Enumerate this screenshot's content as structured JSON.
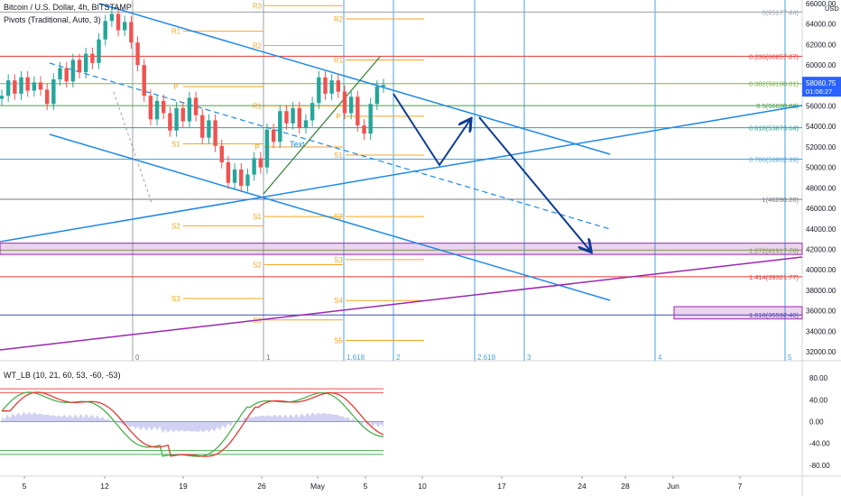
{
  "header": {
    "symbol": "Bitcoin / U.S. Dollar, 4h, BITSTAMP",
    "indicator": "Pivots (Traditional, Auto, 3)",
    "currency": "USD"
  },
  "oscillator": {
    "label": "WT_LB (10, 21, 60, 53, -60, -53)",
    "ticks": [
      80,
      40,
      0,
      -40,
      -80
    ],
    "tick_labels": [
      "80.00",
      "40.00",
      "0.00",
      "-40.00",
      "-80.00"
    ]
  },
  "price_label": {
    "value": "58060.75",
    "timer": "01:06:27",
    "color": "#2962ff"
  },
  "colors": {
    "up": "#26a69a",
    "down": "#ef5350",
    "trend": "#1e88e5",
    "arrow": "#0d3c91",
    "purple": "#9c27b0",
    "pivot": "#f5a623"
  },
  "chart_data": {
    "type": "candlestick",
    "title": "Bitcoin / U.S. Dollar, 4h, BITSTAMP",
    "ylim": [
      31000,
      66000
    ],
    "price_ticks": [
      66000,
      64000,
      62000,
      60000,
      58000,
      56000,
      54000,
      52000,
      50000,
      48000,
      46000,
      44000,
      42000,
      40000,
      38000,
      36000,
      34000,
      32000
    ],
    "price_tick_labels": [
      "66000.00",
      "64000.00",
      "62000.00",
      "60000.00",
      "58000.00",
      "56000.00",
      "54000.00",
      "52000.00",
      "50000.00",
      "48000.00",
      "46000.00",
      "44000.00",
      "42000.00",
      "40000.00",
      "38000.00",
      "36000.00",
      "34000.00",
      "32000.00"
    ],
    "x_ticks": [
      "5",
      "12",
      "19",
      "26",
      "May",
      "5",
      "10",
      "17",
      "24",
      "28",
      "Jun",
      "7"
    ],
    "fib_levels": [
      {
        "label": "0(65177.44)",
        "value": 65177
      },
      {
        "label": "0.236(60857.07)",
        "value": 60857
      },
      {
        "label": "0.382(58188.01)",
        "value": 58188
      },
      {
        "label": "0.5(56030.82)",
        "value": 56031
      },
      {
        "label": "0.618(53873.64)",
        "value": 53874
      },
      {
        "label": "0.786(50802.39)",
        "value": 50802
      },
      {
        "label": "1(46890.20)",
        "value": 46890
      },
      {
        "label": "1.272(41917.70)",
        "value": 41918
      },
      {
        "label": "1.414(39321.77)",
        "value": 39322
      },
      {
        "label": "1.618(35592.40)",
        "value": 35592
      }
    ],
    "fib_time_labels": [
      "0",
      "1",
      "1.618",
      "2",
      "2.618",
      "3",
      "4",
      "5"
    ],
    "pivot_labels": [
      "R3",
      "R2",
      "R1",
      "P",
      "S1",
      "S2",
      "S3"
    ],
    "extra_pivot_labels": [
      "R1",
      "R1",
      "P",
      "P",
      "S1",
      "S1",
      "S2",
      "S2",
      "S3",
      "S3",
      "S4",
      "S5",
      "R2",
      "R1",
      "P",
      "S1"
    ],
    "annotation": "Text",
    "price_path": [
      57000,
      58500,
      57200,
      58800,
      57500,
      58300,
      57600,
      56200,
      58600,
      59700,
      58400,
      60500,
      59300,
      61100,
      60200,
      62500,
      64300,
      65000,
      63400,
      64200,
      62200,
      60000,
      57000,
      54700,
      56500,
      55300,
      53600,
      55800,
      54500,
      56800,
      55100,
      52900,
      54600,
      52100,
      50500,
      48500,
      49800,
      48200,
      49300,
      50900,
      50000,
      53700,
      52500,
      55500,
      54300,
      55800,
      53900,
      54600,
      56300,
      58800,
      57200,
      58500,
      57400,
      55300,
      56900,
      54100,
      53300,
      56200,
      57900,
      58060
    ]
  }
}
